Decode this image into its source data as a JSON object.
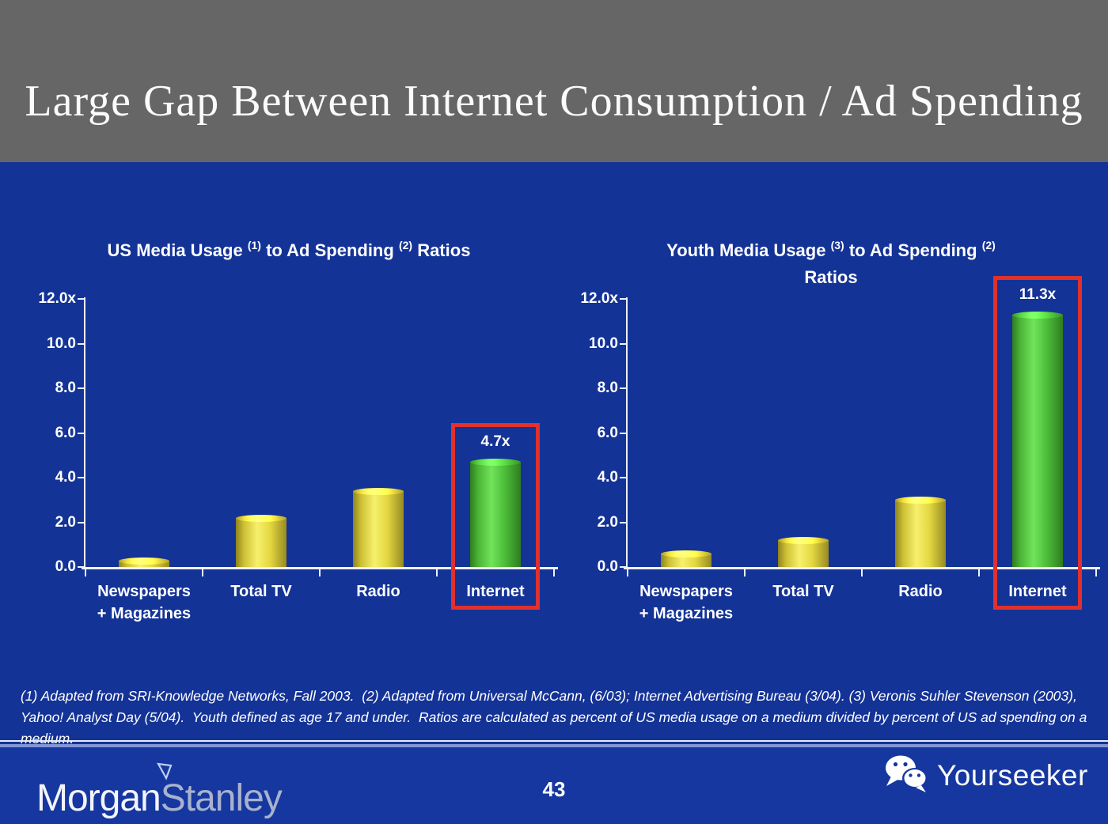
{
  "slide": {
    "title": "Large Gap Between Internet Consumption / Ad Spending",
    "page_number": "43",
    "footnote": "(1) Adapted from SRI-Knowledge Networks, Fall 2003.  (2) Adapted from Universal McCann, (6/03); Internet Advertising Bureau (3/04). (3) Veronis Suhler Stevenson (2003), Yahoo! Analyst Day (5/04).  Youth defined as age 17 and under.  Ratios are calculated as percent of US media usage on a medium divided by percent of US ad spending on a medium."
  },
  "branding": {
    "logo_part1": "Morgan",
    "logo_part2": "Stanley",
    "watermark_text": "Yourseeker"
  },
  "colors": {
    "background_blue": "#143397",
    "header_gray": "#666666",
    "bar_yellow": "#ede23f",
    "bar_green": "#55cc44",
    "highlight_red": "#e0312d",
    "text_white": "#ffffff"
  },
  "chart_data": [
    {
      "type": "bar",
      "title": {
        "part1": "US Media Usage",
        "sup1": "(1)",
        "part2": "to Ad Spending",
        "sup2": "(2)",
        "part3": "Ratios",
        "line2": ""
      },
      "categories": [
        "Newspapers\n+ Magazines",
        "Total TV",
        "Radio",
        "Internet"
      ],
      "category_slugs": [
        "newspapers-magazines",
        "total-tv",
        "radio",
        "internet"
      ],
      "values": [
        0.3,
        2.2,
        3.4,
        4.7
      ],
      "bar_colors": [
        "yellow",
        "yellow",
        "yellow",
        "green"
      ],
      "ylim": [
        0,
        12
      ],
      "ytick_labels": [
        "12.0x",
        "10.0",
        "8.0",
        "6.0",
        "4.0",
        "2.0",
        "0.0"
      ],
      "xlabel": "",
      "ylabel": "",
      "grid": false,
      "legend": null,
      "annotation": {
        "index": 3,
        "label": "4.7x",
        "boxed": true
      }
    },
    {
      "type": "bar",
      "title": {
        "part1": "Youth Media Usage",
        "sup1": "(3)",
        "part2": "to Ad Spending",
        "sup2": "(2)",
        "part3": "",
        "line2": "Ratios"
      },
      "categories": [
        "Newspapers\n+ Magazines",
        "Total TV",
        "Radio",
        "Internet"
      ],
      "category_slugs": [
        "newspapers-magazines",
        "total-tv",
        "radio",
        "internet"
      ],
      "values": [
        0.6,
        1.2,
        3.0,
        11.3
      ],
      "bar_colors": [
        "yellow",
        "yellow",
        "yellow",
        "green"
      ],
      "ylim": [
        0,
        12
      ],
      "ytick_labels": [
        "12.0x",
        "10.0",
        "8.0",
        "6.0",
        "4.0",
        "2.0",
        "0.0"
      ],
      "xlabel": "",
      "ylabel": "",
      "grid": false,
      "legend": null,
      "annotation": {
        "index": 3,
        "label": "11.3x",
        "boxed": true
      }
    }
  ]
}
